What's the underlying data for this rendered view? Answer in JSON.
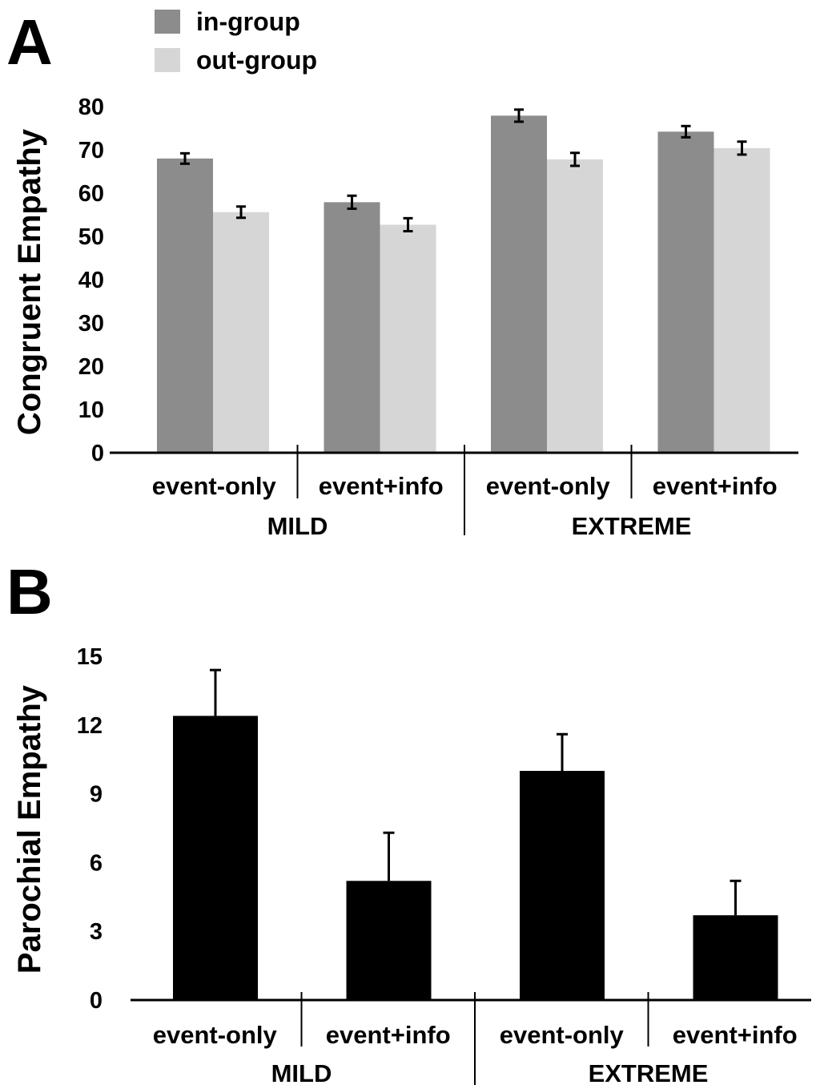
{
  "colors": {
    "in_group": "#8c8c8c",
    "out_group": "#d6d6d6",
    "parochial": "#000000",
    "axis": "#000000"
  },
  "chart_data": [
    {
      "panel": "A",
      "type": "bar",
      "ylabel": "Congruent Empathy",
      "ylim": [
        0,
        80
      ],
      "yticks": [
        "0",
        "10",
        "20",
        "30",
        "40",
        "50",
        "60",
        "70",
        "80"
      ],
      "legend": {
        "placement": "top-left"
      },
      "categories": [
        "event-only",
        "event+info",
        "event-only",
        "event+info"
      ],
      "groups": [
        {
          "label": "MILD",
          "span": [
            0,
            1
          ]
        },
        {
          "label": "EXTREME",
          "span": [
            2,
            3
          ]
        }
      ],
      "series": [
        {
          "name": "in-group",
          "values": [
            68,
            57.9,
            77.9,
            74.2
          ],
          "errors": [
            1.2,
            1.5,
            1.4,
            1.3
          ]
        },
        {
          "name": "out-group",
          "values": [
            55.6,
            52.7,
            67.8,
            70.4
          ],
          "errors": [
            1.3,
            1.5,
            1.5,
            1.5
          ]
        }
      ]
    },
    {
      "panel": "B",
      "type": "bar",
      "ylabel": "Parochial Empathy",
      "ylim": [
        0,
        15
      ],
      "yticks": [
        "0",
        "3",
        "6",
        "9",
        "12",
        "15"
      ],
      "categories": [
        "event-only",
        "event+info",
        "event-only",
        "event+info"
      ],
      "groups": [
        {
          "label": "MILD",
          "span": [
            0,
            1
          ]
        },
        {
          "label": "EXTREME",
          "span": [
            2,
            3
          ]
        }
      ],
      "series": [
        {
          "values": [
            12.4,
            5.2,
            10.0,
            3.7
          ],
          "errors": [
            2.0,
            2.1,
            1.6,
            1.5
          ]
        }
      ]
    }
  ]
}
